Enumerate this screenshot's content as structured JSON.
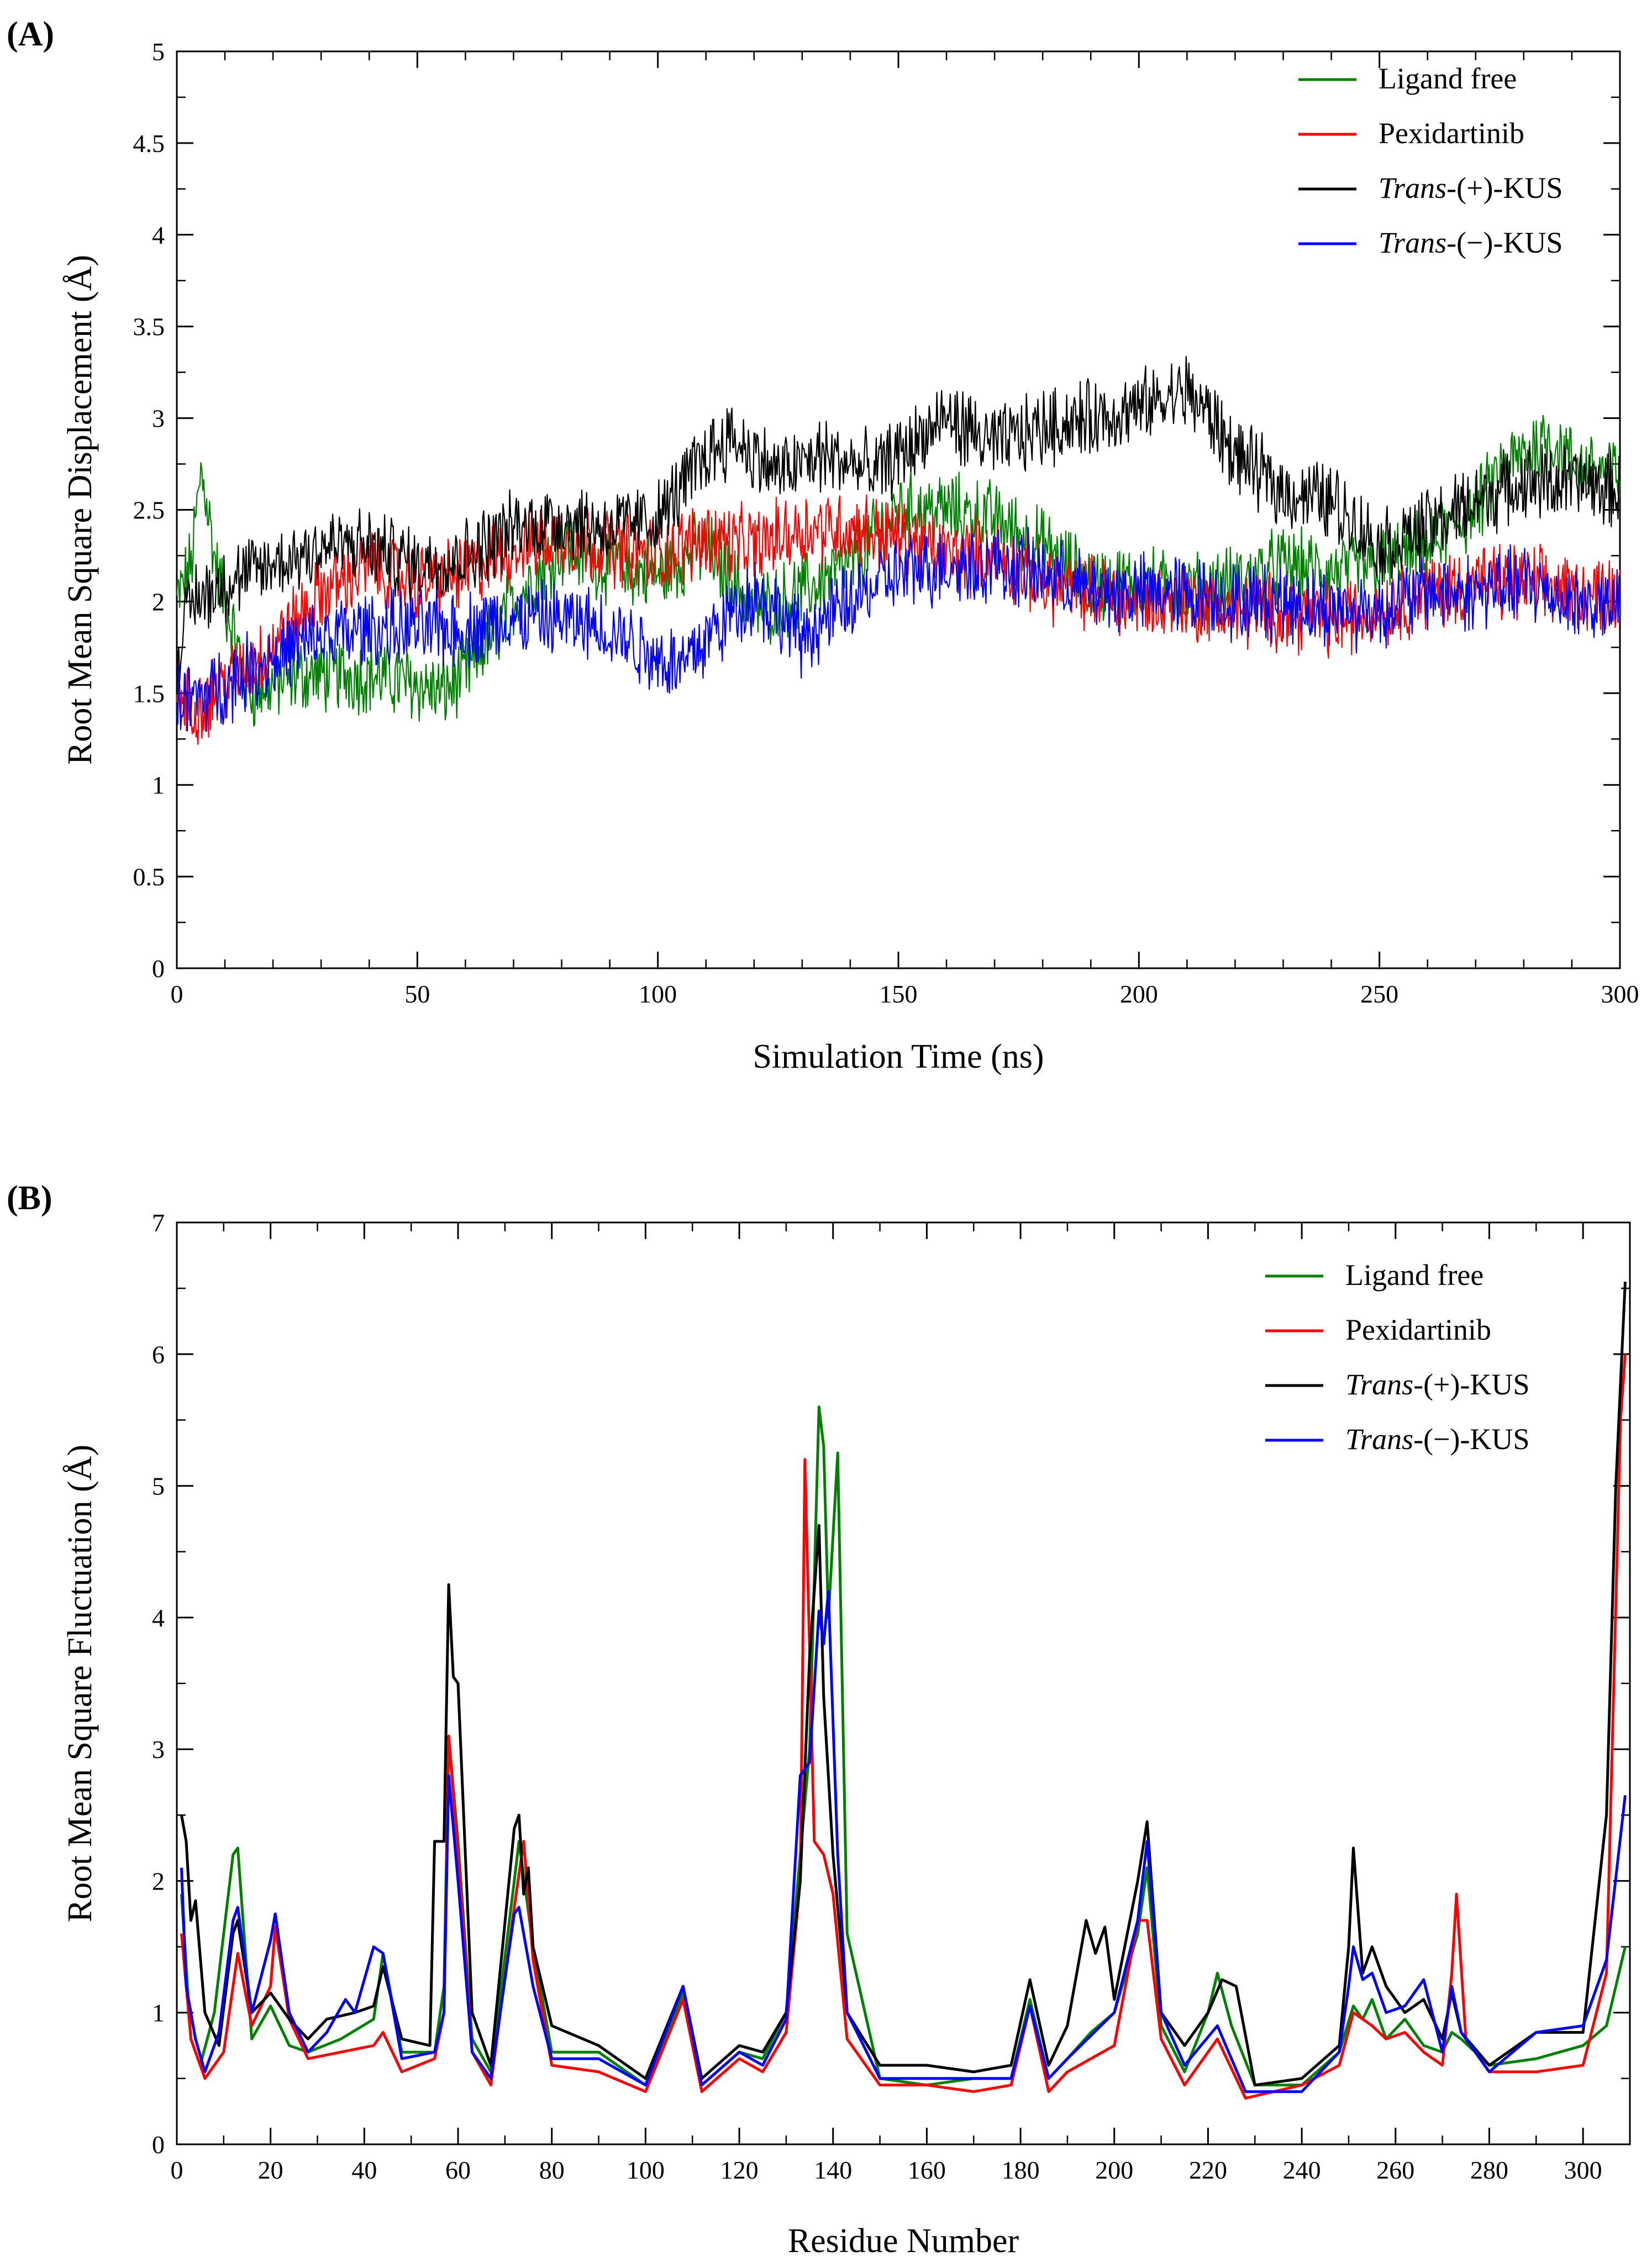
{
  "chart_data": [
    {
      "panel": "(A)",
      "type": "line",
      "title": "",
      "xlabel": "Simulation Time (ns)",
      "ylabel": "Root Mean Square Displacement (Å)",
      "xlim": [
        0,
        300
      ],
      "ylim": [
        0,
        5
      ],
      "xticks": [
        0,
        50,
        100,
        150,
        200,
        250,
        300
      ],
      "yticks": [
        0,
        0.5,
        1,
        1.5,
        2,
        2.5,
        3,
        3.5,
        4,
        4.5,
        5
      ],
      "ytick_labels": [
        "0",
        "0.5",
        "1",
        "1.5",
        "2",
        "2.5",
        "3",
        "3.5",
        "4",
        "4.5",
        "5"
      ],
      "legend_position": "top-right",
      "series": [
        {
          "name": "Ligand free",
          "prefix": "",
          "suffix": "",
          "color": "#008000",
          "x": [
            0,
            3,
            5,
            6,
            8,
            15,
            25,
            40,
            50,
            55,
            60,
            70,
            80,
            90,
            100,
            110,
            120,
            130,
            140,
            150,
            160,
            170,
            180,
            190,
            200,
            210,
            220,
            230,
            240,
            250,
            260,
            270,
            275,
            280,
            285,
            290,
            300
          ],
          "y": [
            2.0,
            2.2,
            2.7,
            2.6,
            2.2,
            1.5,
            1.6,
            1.6,
            1.55,
            1.5,
            1.6,
            2.0,
            2.3,
            2.2,
            2.15,
            2.3,
            1.95,
            2.05,
            2.2,
            2.5,
            2.5,
            2.45,
            2.3,
            2.1,
            2.1,
            2.05,
            2.1,
            2.2,
            2.15,
            2.2,
            2.3,
            2.5,
            2.7,
            2.8,
            2.9,
            2.75,
            2.7
          ]
        },
        {
          "name": "Pexidartinib",
          "prefix": "",
          "suffix": "",
          "color": "#ff0000",
          "x": [
            0,
            3,
            10,
            20,
            30,
            40,
            50,
            60,
            70,
            80,
            90,
            100,
            110,
            120,
            130,
            140,
            150,
            160,
            170,
            180,
            190,
            200,
            210,
            220,
            230,
            240,
            250,
            260,
            270,
            280,
            290,
            300
          ],
          "y": [
            1.5,
            1.4,
            1.55,
            1.75,
            2.05,
            2.2,
            2.1,
            2.15,
            2.3,
            2.35,
            2.3,
            2.25,
            2.35,
            2.3,
            2.4,
            2.4,
            2.35,
            2.25,
            2.25,
            2.1,
            2.05,
            2.0,
            2.0,
            1.95,
            1.95,
            1.9,
            1.95,
            2.05,
            2.1,
            2.1,
            2.05,
            2.05
          ]
        },
        {
          "name": "Trans-(+)-KUS",
          "prefix": "Trans",
          "suffix": "-(+)-KUS",
          "color": "#000000",
          "x": [
            0,
            3,
            10,
            20,
            30,
            40,
            50,
            60,
            70,
            80,
            90,
            100,
            110,
            115,
            125,
            135,
            145,
            155,
            160,
            170,
            180,
            190,
            200,
            210,
            215,
            220,
            230,
            240,
            250,
            260,
            270,
            280,
            290,
            300
          ],
          "y": [
            1.7,
            2.0,
            2.1,
            2.2,
            2.3,
            2.3,
            2.2,
            2.25,
            2.4,
            2.45,
            2.4,
            2.45,
            2.8,
            2.9,
            2.7,
            2.8,
            2.7,
            2.9,
            3.0,
            2.85,
            2.95,
            3.0,
            3.05,
            3.15,
            3.0,
            2.8,
            2.6,
            2.55,
            2.3,
            2.4,
            2.55,
            2.65,
            2.65,
            2.6
          ]
        },
        {
          "name": "Trans-(−)-KUS",
          "prefix": "Trans",
          "suffix": "-(−)-KUS",
          "color": "#0000ff",
          "x": [
            0,
            3,
            10,
            20,
            30,
            40,
            50,
            60,
            70,
            80,
            90,
            100,
            105,
            110,
            120,
            130,
            140,
            150,
            160,
            170,
            180,
            190,
            200,
            210,
            220,
            230,
            240,
            250,
            260,
            270,
            280,
            290,
            300
          ],
          "y": [
            1.5,
            1.45,
            1.55,
            1.7,
            1.8,
            1.85,
            1.85,
            1.85,
            1.9,
            1.9,
            1.85,
            1.7,
            1.65,
            1.8,
            2.05,
            1.8,
            2.0,
            2.15,
            2.2,
            2.2,
            2.15,
            2.05,
            2.05,
            2.05,
            2.0,
            2.0,
            1.95,
            1.95,
            2.05,
            2.05,
            2.1,
            2.0,
            1.95
          ]
        }
      ]
    },
    {
      "panel": "(B)",
      "type": "line",
      "title": "",
      "xlabel": "Residue Number",
      "ylabel": "Root Mean Square Fluctuation (Å)",
      "xlim": [
        0,
        310
      ],
      "ylim": [
        0,
        7
      ],
      "xticks": [
        0,
        20,
        40,
        60,
        80,
        100,
        120,
        140,
        160,
        180,
        200,
        220,
        240,
        260,
        280,
        300
      ],
      "yticks": [
        0,
        1,
        2,
        3,
        4,
        5,
        6,
        7
      ],
      "ytick_labels": [
        "0",
        "1",
        "2",
        "3",
        "4",
        "5",
        "6",
        "7"
      ],
      "legend_position": "top-right",
      "series": [
        {
          "name": "Ligand free",
          "prefix": "",
          "suffix": "",
          "color": "#008000",
          "x": [
            1,
            3,
            5,
            8,
            12,
            13,
            16,
            20,
            24,
            28,
            35,
            42,
            44,
            48,
            55,
            57,
            58,
            60,
            63,
            67,
            72,
            73,
            76,
            80,
            90,
            100,
            108,
            112,
            120,
            125,
            130,
            133,
            135,
            137,
            138,
            139,
            141,
            143,
            150,
            160,
            170,
            178,
            182,
            186,
            190,
            195,
            200,
            205,
            207,
            210,
            215,
            220,
            222,
            225,
            230,
            240,
            248,
            251,
            253,
            255,
            258,
            262,
            266,
            270,
            272,
            274,
            280,
            290,
            300,
            305,
            309
          ],
          "y": [
            1.9,
            0.8,
            0.6,
            1.0,
            2.2,
            2.25,
            0.8,
            1.05,
            0.75,
            0.7,
            0.8,
            0.95,
            1.45,
            0.7,
            0.7,
            1.2,
            3.1,
            2.3,
            0.8,
            0.55,
            2.0,
            2.3,
            1.5,
            0.7,
            0.7,
            0.45,
            1.15,
            0.45,
            0.7,
            0.65,
            1.0,
            2.2,
            3.0,
            5.6,
            5.3,
            4.0,
            5.25,
            1.6,
            0.5,
            0.45,
            0.5,
            0.5,
            1.1,
            0.5,
            0.65,
            0.85,
            1.0,
            1.6,
            2.1,
            0.9,
            0.55,
            1.0,
            1.3,
            0.9,
            0.45,
            0.45,
            0.7,
            1.05,
            0.95,
            1.1,
            0.8,
            0.95,
            0.75,
            0.7,
            0.85,
            0.8,
            0.6,
            0.65,
            0.75,
            0.9,
            1.5
          ]
        },
        {
          "name": "Pexidartinib",
          "prefix": "",
          "suffix": "",
          "color": "#ff0000",
          "x": [
            1,
            3,
            6,
            10,
            13,
            16,
            20,
            21,
            24,
            28,
            35,
            42,
            44,
            48,
            55,
            57,
            58,
            60,
            63,
            67,
            72,
            74,
            76,
            80,
            90,
            100,
            108,
            112,
            120,
            125,
            130,
            133,
            134,
            136,
            138,
            140,
            143,
            150,
            160,
            170,
            178,
            182,
            186,
            190,
            200,
            205,
            207,
            210,
            215,
            222,
            228,
            240,
            248,
            251,
            255,
            258,
            262,
            266,
            270,
            272,
            273,
            275,
            280,
            290,
            300,
            305,
            308,
            309
          ],
          "y": [
            1.6,
            0.8,
            0.5,
            0.7,
            1.45,
            0.9,
            1.2,
            1.65,
            0.95,
            0.65,
            0.7,
            0.75,
            0.85,
            0.55,
            0.65,
            1.0,
            3.1,
            2.2,
            0.7,
            0.45,
            1.8,
            2.3,
            1.4,
            0.6,
            0.55,
            0.4,
            1.1,
            0.4,
            0.65,
            0.55,
            0.85,
            2.0,
            5.2,
            2.3,
            2.2,
            1.9,
            0.8,
            0.45,
            0.45,
            0.4,
            0.45,
            1.05,
            0.4,
            0.55,
            0.75,
            1.7,
            1.7,
            0.8,
            0.45,
            0.8,
            0.35,
            0.45,
            0.6,
            1.0,
            0.9,
            0.8,
            0.85,
            0.7,
            0.6,
            1.3,
            1.9,
            0.8,
            0.55,
            0.55,
            0.6,
            1.3,
            5.5,
            6.0
          ]
        },
        {
          "name": "Trans-(+)-KUS",
          "prefix": "Trans",
          "suffix": "-(+)-KUS",
          "color": "#000000",
          "x": [
            1,
            2,
            3,
            4,
            6,
            9,
            12,
            13,
            16,
            20,
            24,
            28,
            32,
            38,
            42,
            44,
            48,
            54,
            55,
            57,
            58,
            59,
            60,
            63,
            67,
            72,
            73,
            74,
            75,
            76,
            80,
            90,
            100,
            108,
            112,
            120,
            125,
            130,
            133,
            135,
            137,
            138,
            140,
            143,
            150,
            160,
            170,
            178,
            182,
            186,
            190,
            194,
            196,
            198,
            200,
            205,
            207,
            210,
            215,
            220,
            223,
            226,
            230,
            240,
            248,
            250,
            251,
            253,
            255,
            258,
            262,
            266,
            270,
            272,
            274,
            280,
            290,
            300,
            305,
            307,
            309
          ],
          "y": [
            2.5,
            2.3,
            1.7,
            1.85,
            1.0,
            0.75,
            1.6,
            1.7,
            1.0,
            1.15,
            0.95,
            0.8,
            0.95,
            1.0,
            1.05,
            1.35,
            0.8,
            0.75,
            2.3,
            2.3,
            4.25,
            3.55,
            3.5,
            1.0,
            0.6,
            2.4,
            2.5,
            1.9,
            2.1,
            1.5,
            0.9,
            0.75,
            0.5,
            1.2,
            0.5,
            0.75,
            0.7,
            1.0,
            2.0,
            3.7,
            4.7,
            3.4,
            2.2,
            1.0,
            0.6,
            0.6,
            0.55,
            0.6,
            1.25,
            0.6,
            0.9,
            1.7,
            1.45,
            1.65,
            1.1,
            2.0,
            2.45,
            1.0,
            0.75,
            1.0,
            1.25,
            1.2,
            0.45,
            0.5,
            0.75,
            1.5,
            2.25,
            1.3,
            1.5,
            1.2,
            1.0,
            1.1,
            0.8,
            1.15,
            0.85,
            0.6,
            0.85,
            0.85,
            2.5,
            5.0,
            6.55
          ]
        },
        {
          "name": "Trans-(−)-KUS",
          "prefix": "Trans",
          "suffix": "-(−)-KUS",
          "color": "#0000ff",
          "x": [
            1,
            2,
            4,
            6,
            9,
            12,
            13,
            16,
            20,
            21,
            24,
            28,
            32,
            36,
            38,
            42,
            44,
            48,
            55,
            57,
            58,
            60,
            63,
            67,
            72,
            73,
            76,
            80,
            90,
            100,
            108,
            112,
            120,
            125,
            130,
            133,
            135,
            137,
            138,
            139,
            141,
            143,
            150,
            160,
            170,
            178,
            182,
            186,
            190,
            200,
            205,
            207,
            210,
            215,
            222,
            228,
            240,
            248,
            250,
            251,
            253,
            255,
            258,
            262,
            266,
            270,
            272,
            274,
            280,
            290,
            300,
            305,
            309
          ],
          "y": [
            2.1,
            1.2,
            0.8,
            0.55,
            0.85,
            1.7,
            1.8,
            1.0,
            1.55,
            1.75,
            1.0,
            0.7,
            0.85,
            1.1,
            1.0,
            1.5,
            1.45,
            0.65,
            0.7,
            1.0,
            2.8,
            2.0,
            0.7,
            0.5,
            1.75,
            1.8,
            1.2,
            0.65,
            0.65,
            0.45,
            1.2,
            0.45,
            0.7,
            0.6,
            0.95,
            2.8,
            2.9,
            4.05,
            3.8,
            4.2,
            2.2,
            1.0,
            0.5,
            0.5,
            0.5,
            0.5,
            1.05,
            0.5,
            0.65,
            1.0,
            1.7,
            2.3,
            1.0,
            0.6,
            0.9,
            0.4,
            0.4,
            0.7,
            1.2,
            1.5,
            1.25,
            1.3,
            1.0,
            1.05,
            1.25,
            0.7,
            1.2,
            0.85,
            0.55,
            0.85,
            0.9,
            1.4,
            2.65
          ]
        }
      ]
    }
  ]
}
